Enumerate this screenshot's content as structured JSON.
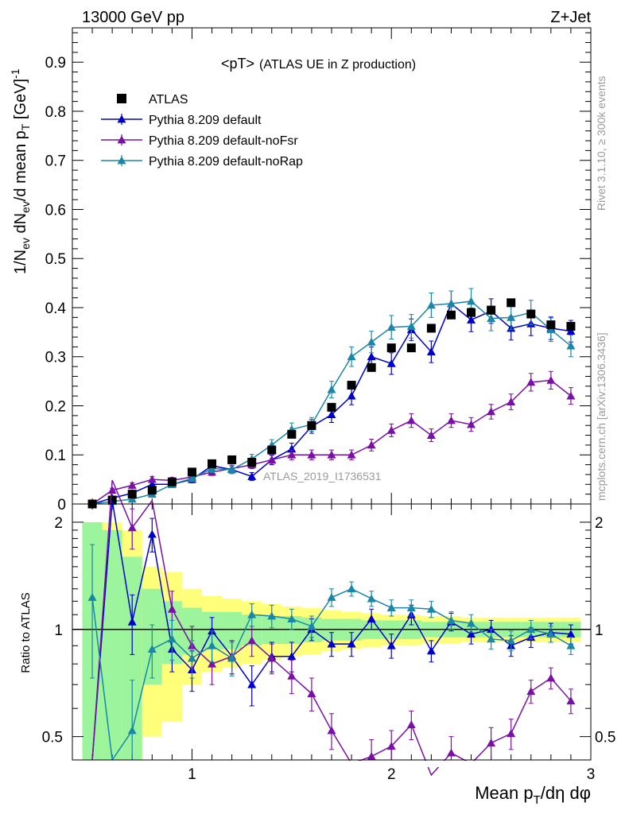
{
  "header": {
    "left": "13000 GeV pp",
    "right": "Z+Jet"
  },
  "side_labels": {
    "rivet": "Rivet 3.1.10, ≥ 300k events",
    "mcplots": "mcplots.cern.ch [arXiv:1306.3436]"
  },
  "chart_data": {
    "type": "scatter",
    "title_main": "<pT>",
    "title_sub": "(ATLAS UE in Z production)",
    "analysis_id": "ATLAS_2019_I1736531",
    "ylabel": {
      "main": "1/N",
      "sub1": "ev",
      "mid": " dN",
      "sub2": "ev",
      "mid2": "/d mean p",
      "sub3": "T",
      "unit": " [GeV]",
      "sup": "-1"
    },
    "xlabel": {
      "main": "Mean p",
      "sub": "T",
      "rest": "/dη dφ"
    },
    "ratio_ylabel": "Ratio to ATLAS",
    "xlim": [
      0.4,
      3.0
    ],
    "ylim": [
      0,
      0.97
    ],
    "ratio_ylim": [
      0.43,
      2.25
    ],
    "x_ticks": [
      1,
      2,
      3
    ],
    "y_ticks": [
      0,
      0.1,
      0.2,
      0.3,
      0.4,
      0.5,
      0.6,
      0.7,
      0.8,
      0.9
    ],
    "ratio_ticks": [
      0.5,
      1,
      2
    ],
    "legend_position": "top-left",
    "data": {
      "name": "ATLAS",
      "color": "#000000",
      "x": [
        0.5,
        0.6,
        0.7,
        0.8,
        0.9,
        1.0,
        1.1,
        1.2,
        1.3,
        1.4,
        1.5,
        1.6,
        1.7,
        1.8,
        1.9,
        2.0,
        2.1,
        2.2,
        2.3,
        2.4,
        2.5,
        2.6,
        2.7,
        2.8,
        2.9
      ],
      "y": [
        0.0,
        0.008,
        0.02,
        0.028,
        0.045,
        0.065,
        0.082,
        0.09,
        0.085,
        0.11,
        0.142,
        0.16,
        0.197,
        0.242,
        0.278,
        0.318,
        0.318,
        0.358,
        0.385,
        0.39,
        0.395,
        0.41,
        0.387,
        0.365,
        0.362
      ],
      "stat_band": [
        1.0,
        0.9,
        0.6,
        0.3,
        0.2,
        0.15,
        0.12,
        0.12,
        0.1,
        0.09,
        0.09,
        0.08,
        0.07,
        0.07,
        0.06,
        0.06,
        0.06,
        0.05,
        0.05,
        0.05,
        0.05,
        0.05,
        0.05,
        0.05,
        0.05
      ],
      "tot_band": [
        1.0,
        1.0,
        0.9,
        0.5,
        0.45,
        0.3,
        0.24,
        0.22,
        0.2,
        0.18,
        0.16,
        0.15,
        0.13,
        0.12,
        0.11,
        0.1,
        0.1,
        0.09,
        0.09,
        0.08,
        0.08,
        0.08,
        0.08,
        0.08,
        0.08
      ]
    },
    "series": [
      {
        "name": "Pythia 8.209 default",
        "color": "#0000cc",
        "x": [
          0.5,
          0.6,
          0.7,
          0.8,
          0.9,
          1.0,
          1.1,
          1.2,
          1.3,
          1.4,
          1.5,
          1.6,
          1.7,
          1.8,
          1.9,
          2.0,
          2.1,
          2.2,
          2.3,
          2.4,
          2.5,
          2.6,
          2.7,
          2.8,
          2.9
        ],
        "y": [
          0.0,
          0.012,
          0.022,
          0.04,
          0.04,
          0.05,
          0.078,
          0.07,
          0.056,
          0.09,
          0.112,
          0.158,
          0.182,
          0.22,
          0.3,
          0.286,
          0.355,
          0.31,
          0.408,
          0.375,
          0.393,
          0.358,
          0.367,
          0.358,
          0.352
        ],
        "err": [
          0.003,
          0.004,
          0.005,
          0.006,
          0.006,
          0.007,
          0.008,
          0.008,
          0.008,
          0.01,
          0.012,
          0.014,
          0.016,
          0.018,
          0.02,
          0.022,
          0.022,
          0.022,
          0.026,
          0.024,
          0.025,
          0.024,
          0.024,
          0.023,
          0.022
        ],
        "ratio": [
          0.0,
          2.3,
          1.05,
          1.85,
          0.88,
          0.77,
          0.99,
          0.84,
          0.7,
          0.84,
          0.84,
          1.0,
          0.91,
          0.91,
          1.07,
          0.9,
          1.1,
          0.87,
          1.05,
          0.97,
          1.0,
          0.9,
          0.95,
          0.98,
          0.97
        ],
        "ratio_err": [
          0.0,
          0.3,
          0.2,
          0.2,
          0.12,
          0.1,
          0.09,
          0.09,
          0.09,
          0.08,
          0.08,
          0.07,
          0.07,
          0.07,
          0.07,
          0.07,
          0.07,
          0.06,
          0.06,
          0.06,
          0.06,
          0.06,
          0.06,
          0.06,
          0.06
        ]
      },
      {
        "name": "Pythia 8.209 default-noFsr",
        "color": "#7a10a8",
        "x": [
          0.5,
          0.6,
          0.7,
          0.8,
          0.9,
          1.0,
          1.1,
          1.2,
          1.3,
          1.4,
          1.5,
          1.6,
          1.7,
          1.8,
          1.9,
          2.0,
          2.1,
          2.2,
          2.3,
          2.4,
          2.5,
          2.6,
          2.7,
          2.8,
          2.9
        ],
        "y": [
          0.0,
          0.028,
          0.038,
          0.05,
          0.048,
          0.055,
          0.065,
          0.072,
          0.08,
          0.09,
          0.1,
          0.1,
          0.1,
          0.1,
          0.12,
          0.15,
          0.17,
          0.14,
          0.17,
          0.162,
          0.188,
          0.208,
          0.248,
          0.252,
          0.22
        ],
        "err": [
          0.003,
          0.004,
          0.005,
          0.006,
          0.006,
          0.007,
          0.007,
          0.007,
          0.008,
          0.009,
          0.01,
          0.01,
          0.01,
          0.01,
          0.012,
          0.013,
          0.014,
          0.013,
          0.014,
          0.014,
          0.015,
          0.016,
          0.018,
          0.018,
          0.017
        ],
        "ratio": [
          0.0,
          2.8,
          1.93,
          2.3,
          1.14,
          0.9,
          0.8,
          0.84,
          0.93,
          0.83,
          0.74,
          0.66,
          0.52,
          0.42,
          0.44,
          0.47,
          0.54,
          0.39,
          0.45,
          0.42,
          0.48,
          0.51,
          0.67,
          0.73,
          0.63
        ],
        "ratio_err": [
          0.0,
          0.4,
          0.25,
          0.2,
          0.14,
          0.12,
          0.1,
          0.09,
          0.09,
          0.08,
          0.08,
          0.07,
          0.06,
          0.05,
          0.05,
          0.05,
          0.05,
          0.05,
          0.05,
          0.05,
          0.05,
          0.05,
          0.05,
          0.05,
          0.05
        ]
      },
      {
        "name": "Pythia 8.209 default-noRap",
        "color": "#1a86a8",
        "x": [
          0.5,
          0.6,
          0.7,
          0.8,
          0.9,
          1.0,
          1.1,
          1.2,
          1.3,
          1.4,
          1.5,
          1.6,
          1.7,
          1.8,
          1.9,
          2.0,
          2.1,
          2.2,
          2.3,
          2.4,
          2.5,
          2.6,
          2.7,
          2.8,
          2.9
        ],
        "y": [
          0.0,
          0.005,
          0.01,
          0.02,
          0.04,
          0.052,
          0.072,
          0.07,
          0.092,
          0.12,
          0.152,
          0.162,
          0.233,
          0.3,
          0.33,
          0.36,
          0.362,
          0.405,
          0.408,
          0.413,
          0.378,
          0.38,
          0.39,
          0.355,
          0.322
        ],
        "err": [
          0.003,
          0.003,
          0.004,
          0.005,
          0.006,
          0.007,
          0.008,
          0.008,
          0.009,
          0.011,
          0.013,
          0.014,
          0.017,
          0.02,
          0.022,
          0.024,
          0.024,
          0.025,
          0.026,
          0.026,
          0.025,
          0.025,
          0.025,
          0.024,
          0.022
        ],
        "ratio": [
          1.23,
          0.0,
          0.52,
          0.88,
          0.94,
          0.83,
          0.9,
          0.83,
          1.1,
          1.09,
          1.07,
          1.02,
          1.23,
          1.3,
          1.22,
          1.15,
          1.15,
          1.14,
          1.06,
          1.04,
          0.94,
          0.93,
          1.0,
          0.97,
          0.9
        ],
        "ratio_err": [
          0.5,
          0.0,
          0.2,
          0.15,
          0.12,
          0.1,
          0.09,
          0.09,
          0.08,
          0.08,
          0.07,
          0.07,
          0.07,
          0.06,
          0.06,
          0.06,
          0.06,
          0.06,
          0.06,
          0.06,
          0.06,
          0.06,
          0.06,
          0.05,
          0.05
        ]
      }
    ]
  }
}
